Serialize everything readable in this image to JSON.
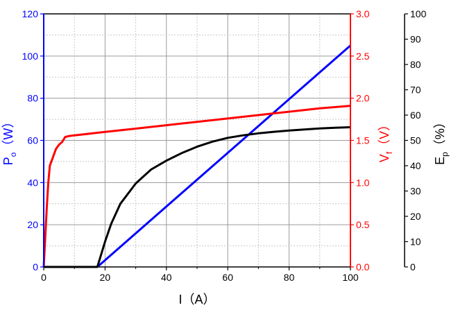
{
  "chart_data": {
    "type": "line",
    "title": "",
    "grid": true,
    "x_axis": {
      "label": "I（A）",
      "label_var": "I",
      "label_unit": "（A）",
      "range": [
        0,
        100
      ],
      "ticks": [
        "0",
        "20",
        "40",
        "60",
        "80",
        "100"
      ]
    },
    "y_axes": [
      {
        "id": "po",
        "side": "left",
        "label": "Po（W）",
        "label_var": "P",
        "label_sub": "o",
        "label_unit": "（W）",
        "color": "#0000ff",
        "range": [
          0,
          120
        ],
        "ticks": [
          "0",
          "20",
          "40",
          "60",
          "80",
          "100",
          "120"
        ]
      },
      {
        "id": "vf",
        "side": "right",
        "label": "Vf（V）",
        "label_var": "V",
        "label_sub": "f",
        "label_unit": "（V）",
        "color": "#ff0000",
        "range": [
          0,
          3
        ],
        "ticks": [
          "0.0",
          "0.5",
          "1.0",
          "1.5",
          "2.0",
          "2.5",
          "3.0"
        ]
      },
      {
        "id": "ep",
        "side": "right-offset",
        "label": "Ep（%）",
        "label_var": "E",
        "label_sub": "p",
        "label_unit": "（%）",
        "color": "#000000",
        "range": [
          0,
          100
        ],
        "ticks": [
          "0",
          "10",
          "20",
          "30",
          "40",
          "50",
          "60",
          "70",
          "80",
          "90",
          "100"
        ]
      }
    ],
    "series": [
      {
        "axis": "po",
        "color": "#0000ff",
        "x": [
          0,
          17.5,
          100
        ],
        "y": [
          0,
          0,
          105
        ]
      },
      {
        "axis": "vf",
        "color": "#ff0000",
        "x": [
          0,
          0.5,
          1,
          1.5,
          2,
          3,
          4,
          5,
          6,
          7,
          8,
          10,
          15,
          20,
          30,
          40,
          50,
          60,
          70,
          80,
          90,
          100
        ],
        "y": [
          0,
          0.35,
          0.7,
          1.0,
          1.2,
          1.3,
          1.4,
          1.45,
          1.48,
          1.54,
          1.55,
          1.56,
          1.58,
          1.6,
          1.64,
          1.68,
          1.72,
          1.76,
          1.8,
          1.84,
          1.88,
          1.91
        ]
      },
      {
        "axis": "ep",
        "color": "#000000",
        "x": [
          0,
          17.5,
          20,
          22,
          25,
          30,
          35,
          40,
          45,
          50,
          55,
          60,
          65,
          70,
          75,
          80,
          85,
          90,
          95,
          100
        ],
        "y": [
          0,
          0,
          10,
          17,
          25,
          33,
          38.5,
          42,
          45,
          47.5,
          49.5,
          51,
          52,
          52.8,
          53.4,
          53.9,
          54.3,
          54.7,
          55,
          55.2
        ]
      }
    ]
  }
}
